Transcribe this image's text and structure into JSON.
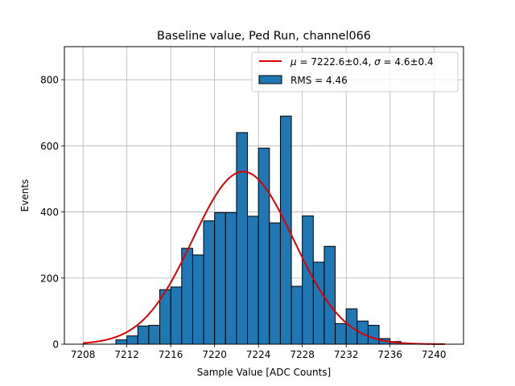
{
  "chart_data": {
    "type": "bar",
    "title": "Baseline value, Ped Run, channel066",
    "xlabel": "Sample Value [ADC Counts]",
    "ylabel": "Events",
    "xlim": [
      7206.3,
      7242.7
    ],
    "ylim": [
      0,
      900
    ],
    "xticks": [
      7208,
      7212,
      7216,
      7220,
      7224,
      7228,
      7232,
      7236,
      7240
    ],
    "yticks": [
      0,
      200,
      400,
      600,
      800
    ],
    "grid": true,
    "legend_position": "top-right",
    "histogram": {
      "name": "RMS = 4.46",
      "bin_width": 1,
      "bin_edges_start": 7210,
      "values": [
        0,
        13,
        25,
        55,
        57,
        165,
        173,
        290,
        270,
        373,
        398,
        398,
        640,
        387,
        593,
        367,
        690,
        175,
        388,
        248,
        296,
        62,
        107,
        70,
        57,
        17,
        8,
        2,
        0
      ],
      "color": "#1f77b4",
      "edge_color": "#000000"
    },
    "fit": {
      "name_parts": {
        "mu_symbol": "μ",
        "mu_text": " = 7222.6±0.4, ",
        "sigma_symbol": "σ",
        "sigma_text": " = 4.6±0.4"
      },
      "mu": 7222.6,
      "sigma": 4.6,
      "peak": 522,
      "x_range": [
        7208,
        7241
      ],
      "color": "#dd0000"
    }
  }
}
